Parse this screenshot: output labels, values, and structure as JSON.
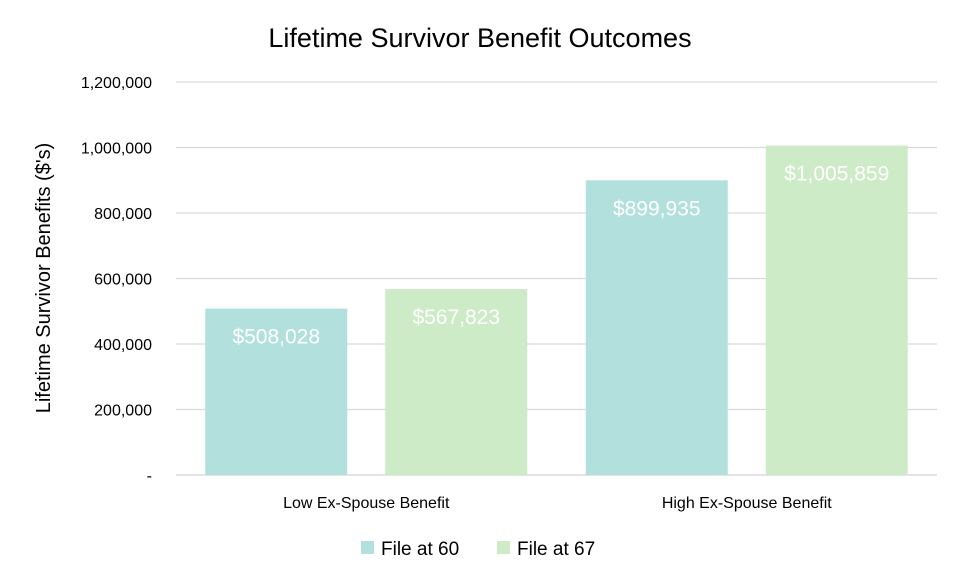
{
  "chart_data": {
    "type": "bar",
    "title": "Lifetime Survivor Benefit Outcomes",
    "xlabel": "",
    "ylabel": "Lifetime Survivor Benefits ($'s)",
    "categories": [
      "Low Ex-Spouse Benefit",
      "High Ex-Spouse Benefit"
    ],
    "series": [
      {
        "name": "File at 60",
        "values": [
          508028,
          899935
        ],
        "labels": [
          "$508,028",
          "$899,935"
        ],
        "color": "#b2e1dd"
      },
      {
        "name": "File at 67",
        "values": [
          567823,
          1005859
        ],
        "labels": [
          "$567,823",
          "$1,005,859"
        ],
        "color": "#cdebc6"
      }
    ],
    "ylim": [
      0,
      1200000
    ],
    "yticks": [
      0,
      200000,
      400000,
      600000,
      800000,
      1000000,
      1200000
    ],
    "ytick_labels": [
      "-",
      "200,000",
      "400,000",
      "600,000",
      "800,000",
      "1,000,000",
      "1,200,000"
    ],
    "grid": true,
    "legend": "bottom"
  }
}
